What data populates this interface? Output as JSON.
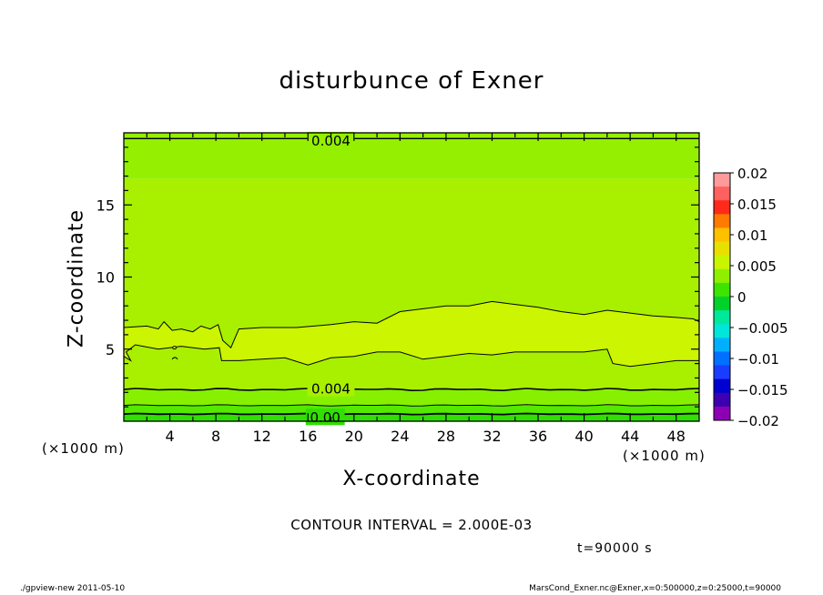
{
  "title": "disturbunce of Exner",
  "footer": {
    "left": "./gpview-new   2011-05-10",
    "right": "MarsCond_Exner.nc@Exner,x=0:500000,z=0:25000,t=90000"
  },
  "contour_interval_text": "CONTOUR INTERVAL = 2.000E-03",
  "time_text": "t=90000 s",
  "x_unit_left": "(×1000 m)",
  "x_unit_right": "(×1000 m)",
  "colors": {
    "band_lt_0": "#2fe000",
    "band_0_to_0002": "#55e800",
    "band_0002_to_0004": "#86f000",
    "band_0004_to_0006": "#a8f000",
    "band_ge_0006": "#cbf500"
  },
  "chart_data": {
    "type": "contour",
    "title": "disturbunce of Exner",
    "xlabel": "X-coordinate",
    "ylabel": "Z-coordinate",
    "xlim": [
      0,
      50
    ],
    "ylim": [
      0,
      20
    ],
    "x_ticks": [
      4,
      8,
      12,
      16,
      20,
      24,
      28,
      32,
      36,
      40,
      44,
      48
    ],
    "y_ticks": [
      5,
      10,
      15
    ],
    "x_tick_labels": [
      "4",
      "8",
      "12",
      "16",
      "20",
      "24",
      "28",
      "32",
      "36",
      "40",
      "44",
      "48"
    ],
    "y_tick_labels": [
      "5",
      "10",
      "15"
    ],
    "contour_interval": 0.002,
    "contour_labels": [
      {
        "text": "0.004",
        "x": 18.0,
        "z": 19.5
      },
      {
        "text": "0.004",
        "x": 18.0,
        "z": 2.3
      },
      {
        "text": "0.00",
        "x": 17.5,
        "z": 0.3
      }
    ],
    "bands_z": [
      {
        "from": 0.0,
        "to": 0.5,
        "value_range": "< 0"
      },
      {
        "from": 0.5,
        "to": 1.1,
        "value_range": "0 – 0.002"
      },
      {
        "from": 1.1,
        "to": 2.2,
        "value_range": "0.002 – 0.004"
      },
      {
        "from": 2.2,
        "to": 16.8,
        "value_range": "0.004 – 0.006"
      },
      {
        "from": 16.8,
        "to": 20.0,
        "value_range": "0.004 – 0.006"
      }
    ],
    "high_region": {
      "value_range": "0.006 – 0.008",
      "top_z": [
        [
          0,
          6.5
        ],
        [
          2,
          6.6
        ],
        [
          3,
          6.4
        ],
        [
          3.5,
          6.9
        ],
        [
          4.2,
          6.3
        ],
        [
          5,
          6.4
        ],
        [
          6,
          6.2
        ],
        [
          6.7,
          6.6
        ],
        [
          7.5,
          6.4
        ],
        [
          8.2,
          6.7
        ],
        [
          8.6,
          5.6
        ],
        [
          9.3,
          5.1
        ],
        [
          10,
          6.4
        ],
        [
          12,
          6.5
        ],
        [
          15,
          6.5
        ],
        [
          18,
          6.7
        ],
        [
          20,
          6.9
        ],
        [
          22,
          6.8
        ],
        [
          24,
          7.6
        ],
        [
          26,
          7.8
        ],
        [
          28,
          8.0
        ],
        [
          30,
          8.0
        ],
        [
          32,
          8.3
        ],
        [
          34,
          8.1
        ],
        [
          36,
          7.9
        ],
        [
          38,
          7.6
        ],
        [
          40,
          7.4
        ],
        [
          42,
          7.7
        ],
        [
          44,
          7.5
        ],
        [
          46,
          7.3
        ],
        [
          48,
          7.2
        ],
        [
          49.5,
          7.1
        ],
        [
          50,
          6.9
        ]
      ],
      "bottom_z": [
        [
          50,
          4.2
        ],
        [
          48,
          4.2
        ],
        [
          46,
          4.0
        ],
        [
          44,
          3.8
        ],
        [
          42.5,
          4.0
        ],
        [
          42,
          5.0
        ],
        [
          40,
          4.8
        ],
        [
          38,
          4.8
        ],
        [
          36,
          4.8
        ],
        [
          34,
          4.8
        ],
        [
          32,
          4.6
        ],
        [
          30,
          4.7
        ],
        [
          28,
          4.5
        ],
        [
          26,
          4.3
        ],
        [
          24,
          4.8
        ],
        [
          22,
          4.8
        ],
        [
          20,
          4.5
        ],
        [
          18,
          4.4
        ],
        [
          16,
          3.9
        ],
        [
          14,
          4.4
        ],
        [
          12,
          4.3
        ],
        [
          10,
          4.2
        ],
        [
          8.5,
          4.2
        ],
        [
          8.3,
          5.1
        ],
        [
          7,
          5.0
        ],
        [
          5,
          5.2
        ],
        [
          3,
          5.0
        ],
        [
          1,
          5.3
        ],
        [
          0.2,
          4.8
        ],
        [
          0.6,
          4.2
        ],
        [
          0,
          4.5
        ]
      ]
    },
    "colorbar": {
      "ticks": [
        "0.02",
        "0.015",
        "0.01",
        "0.005",
        "0",
        "−0.005",
        "−0.01",
        "−0.015",
        "−0.02"
      ],
      "colors": [
        "#ff9a9a",
        "#ff6060",
        "#ff2a1a",
        "#ff7a00",
        "#ffc000",
        "#e8e000",
        "#c9f500",
        "#8ef000",
        "#3fe300",
        "#00d22a",
        "#00e89a",
        "#00e6d8",
        "#00b0ff",
        "#0070ff",
        "#1a3cff",
        "#0000d0",
        "#3c00b0",
        "#8c00b4"
      ]
    }
  }
}
